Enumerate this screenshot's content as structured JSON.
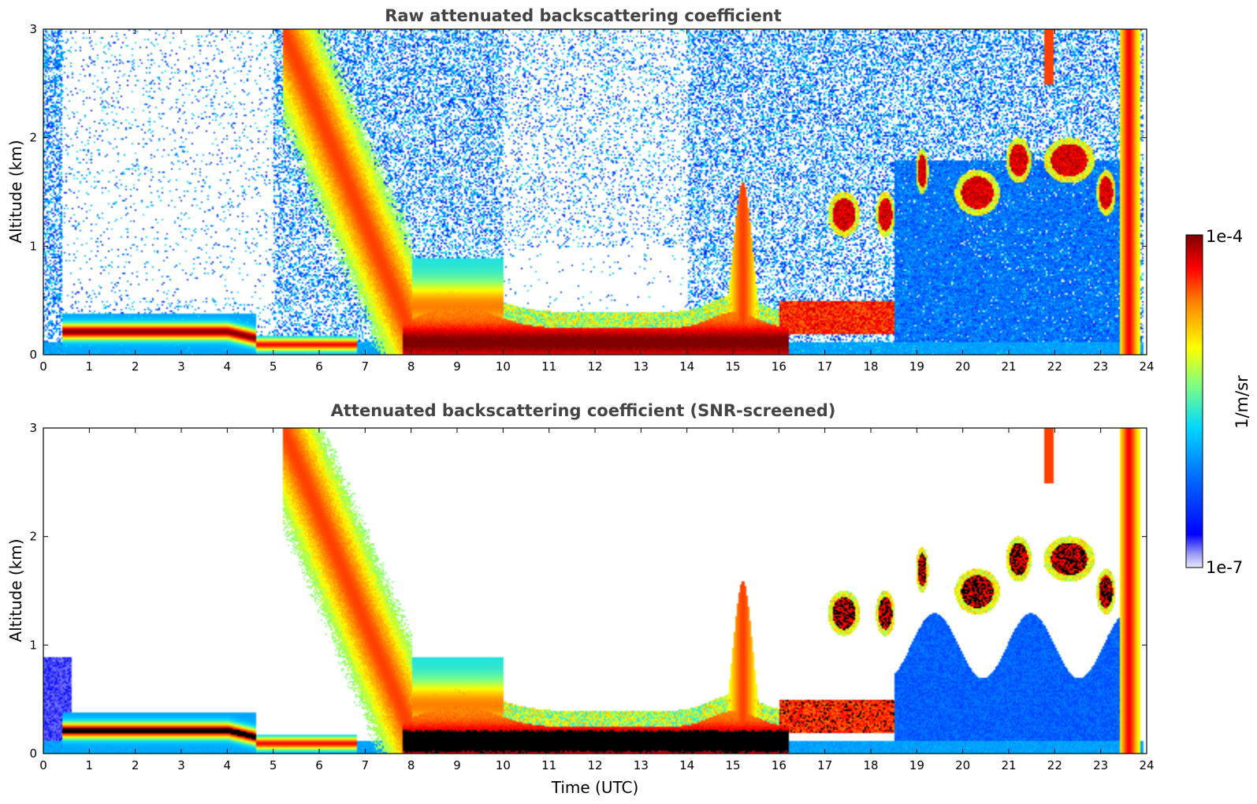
{
  "chart_data": {
    "type": "heatmap",
    "panels": [
      {
        "id": "raw",
        "title": "Raw attenuated backscattering coefficient",
        "xlabel": "",
        "ylabel": "Altitude (km)",
        "xlim": [
          0,
          24
        ],
        "ylim": [
          0,
          3
        ],
        "xticks": [
          "0",
          "1",
          "2",
          "3",
          "4",
          "5",
          "6",
          "7",
          "8",
          "9",
          "10",
          "11",
          "12",
          "13",
          "14",
          "15",
          "16",
          "17",
          "18",
          "19",
          "20",
          "21",
          "22",
          "23",
          "24"
        ],
        "yticks": [
          "0",
          "1",
          "2",
          "3"
        ],
        "noise_level": 1.0,
        "features": [
          {
            "desc": "boundary layer aerosol",
            "x": [
              0.4,
              4.5
            ],
            "y": [
              0.1,
              0.35
            ],
            "level": "high"
          },
          {
            "desc": "descending aerosol plume",
            "x": [
              5.2,
              8.0
            ],
            "y": [
              0.2,
              3.0
            ],
            "level": "mid-high"
          },
          {
            "desc": "dense boundary layer",
            "x": [
              8.0,
              16.0
            ],
            "y": [
              0.0,
              0.3
            ],
            "level": "very-high"
          },
          {
            "desc": "convective plume",
            "x": [
              14.6,
              15.8
            ],
            "y": [
              0.0,
              1.6
            ],
            "level": "mid-high"
          },
          {
            "desc": "low cloud / aerosol layer",
            "x": [
              16.0,
              18.5
            ],
            "y": [
              0.2,
              0.5
            ],
            "level": "high"
          },
          {
            "desc": "scattered clouds",
            "x": [
              17.0,
              23.5
            ],
            "y": [
              1.2,
              2.3
            ],
            "level": "very-high"
          },
          {
            "desc": "rain / precipitation",
            "x": [
              23.4,
              23.8
            ],
            "y": [
              0.0,
              3.0
            ],
            "level": "high"
          }
        ]
      },
      {
        "id": "screened",
        "title": "Attenuated backscattering coefficient (SNR-screened)",
        "xlabel": "Time (UTC)",
        "ylabel": "Altitude (km)",
        "xlim": [
          0,
          24
        ],
        "ylim": [
          0,
          3
        ],
        "xticks": [
          "0",
          "1",
          "2",
          "3",
          "4",
          "5",
          "6",
          "7",
          "8",
          "9",
          "10",
          "11",
          "12",
          "13",
          "14",
          "15",
          "16",
          "17",
          "18",
          "19",
          "20",
          "21",
          "22",
          "23",
          "24"
        ],
        "yticks": [
          "0",
          "1",
          "2",
          "3"
        ],
        "noise_level": 0.0,
        "features": [
          {
            "desc": "boundary layer aerosol",
            "x": [
              0.4,
              4.5
            ],
            "y": [
              0.1,
              0.35
            ],
            "level": "high"
          },
          {
            "desc": "descending aerosol plume",
            "x": [
              5.2,
              8.0
            ],
            "y": [
              0.2,
              3.0
            ],
            "level": "mid-high"
          },
          {
            "desc": "dense boundary layer",
            "x": [
              8.0,
              16.0
            ],
            "y": [
              0.0,
              0.3
            ],
            "level": "very-high"
          },
          {
            "desc": "convective plume",
            "x": [
              14.6,
              15.8
            ],
            "y": [
              0.0,
              1.6
            ],
            "level": "mid-high"
          },
          {
            "desc": "low cloud / aerosol layer",
            "x": [
              16.0,
              18.5
            ],
            "y": [
              0.2,
              0.5
            ],
            "level": "high"
          },
          {
            "desc": "scattered clouds",
            "x": [
              17.0,
              23.5
            ],
            "y": [
              1.2,
              2.3
            ],
            "level": "very-high"
          },
          {
            "desc": "afternoon blue background",
            "x": [
              18.5,
              23.4
            ],
            "y": [
              0.0,
              1.0
            ],
            "level": "low"
          },
          {
            "desc": "rain / precipitation",
            "x": [
              23.4,
              23.8
            ],
            "y": [
              0.0,
              3.0
            ],
            "level": "high"
          }
        ]
      }
    ],
    "colorbar": {
      "label": "1/m/sr",
      "max_label": "1e-4",
      "min_label": "1e-7",
      "scale": "log",
      "range": [
        1e-07,
        0.0001
      ],
      "colormap": "jet"
    }
  }
}
